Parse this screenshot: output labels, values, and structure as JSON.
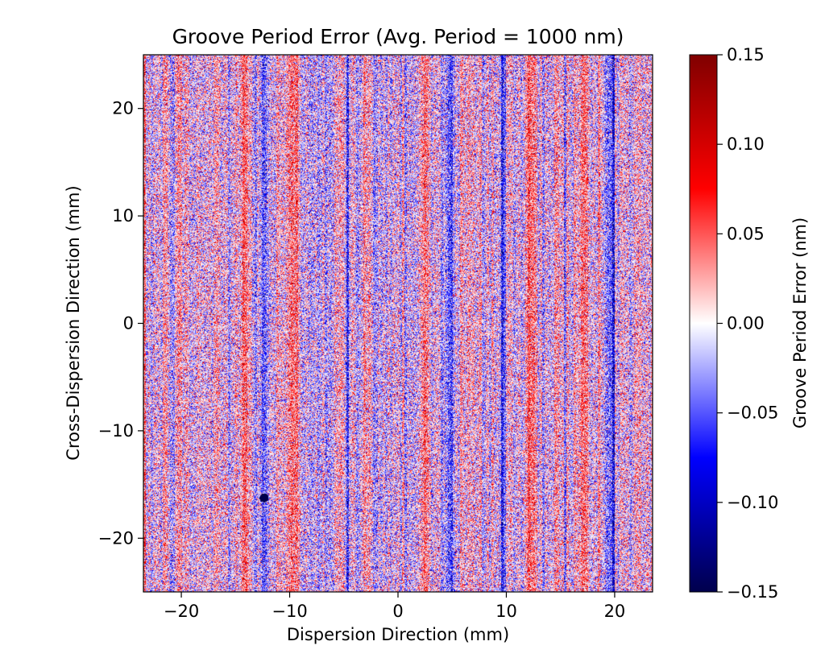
{
  "chart_data": {
    "type": "heatmap",
    "title": "Groove Period Error (Avg. Period = 1000 nm)",
    "xlabel": "Dispersion Direction (mm)",
    "ylabel": "Cross-Dispersion Direction (mm)",
    "xlim": [
      -23.5,
      23.5
    ],
    "ylim": [
      -25,
      25
    ],
    "xticks": [
      -20,
      -10,
      0,
      10,
      20
    ],
    "xtick_labels": [
      "−20",
      "−10",
      "0",
      "10",
      "20"
    ],
    "yticks": [
      20,
      10,
      0,
      -10,
      -20
    ],
    "ytick_labels": [
      "20",
      "10",
      "0",
      "−10",
      "−20"
    ],
    "colorbar": {
      "label": "Groove Period Error (nm)",
      "vmin": -0.15,
      "vmax": 0.15,
      "ticks": [
        0.15,
        0.1,
        0.05,
        0.0,
        -0.05,
        -0.1,
        -0.15
      ],
      "tick_labels": [
        "0.15",
        "0.10",
        "0.05",
        "0.00",
        "−0.05",
        "−0.10",
        "−0.15"
      ],
      "colormap": "seismic",
      "colors": [
        "#00004c",
        "#0000ff",
        "#ffffff",
        "#ff0000",
        "#800000"
      ]
    },
    "features": {
      "blue_streaks_x_mm": [
        -12.5,
        -4.8,
        4.8,
        9.6,
        19.4
      ],
      "red_streaks_x_mm": [
        -14.3,
        -9.7,
        2.3,
        12.0,
        14.6,
        17.1
      ],
      "dark_spot_x_mm": -12.4,
      "dark_spot_y_mm": -16.2
    },
    "grid": false
  }
}
